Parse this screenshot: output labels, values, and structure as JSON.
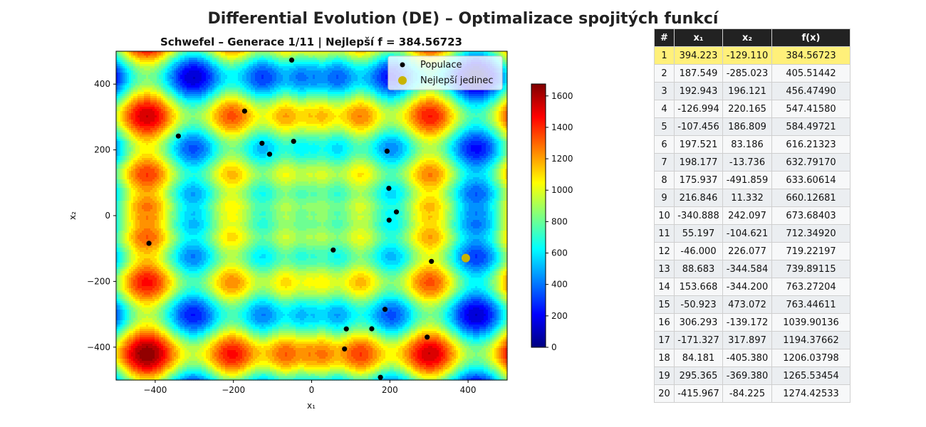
{
  "figure": {
    "suptitle": "Differential Evolution (DE) – Optimalizace spojitých funkcí"
  },
  "chart_data": {
    "type": "scatter",
    "title": "Schwefel – Generace 1/11 | Nejlepší f = 384.56723",
    "xlabel": "x₁",
    "ylabel": "x₂",
    "xlim": [
      -500,
      500
    ],
    "ylim": [
      -500,
      500
    ],
    "xticks": [
      "−400",
      "−200",
      "0",
      "200",
      "400"
    ],
    "xtick_values": [
      -400,
      -200,
      0,
      200,
      400
    ],
    "yticks": [
      "−400",
      "−200",
      "0",
      "200",
      "400"
    ],
    "ytick_values": [
      -400,
      -200,
      0,
      200,
      400
    ],
    "background": "filled contour of Schwefel function (jet colormap)",
    "colorbar": {
      "min": 0,
      "max": 1676,
      "ticks": [
        "0",
        "200",
        "400",
        "600",
        "800",
        "1000",
        "1200",
        "1400",
        "1600"
      ],
      "tick_values": [
        0,
        200,
        400,
        600,
        800,
        1000,
        1200,
        1400,
        1600
      ]
    },
    "legend": {
      "placement": "top-right"
    },
    "series": [
      {
        "name": "Populace",
        "color": "#000000",
        "points": [
          [
            394.223,
            -129.11
          ],
          [
            187.549,
            -285.023
          ],
          [
            192.943,
            196.121
          ],
          [
            -126.994,
            220.165
          ],
          [
            -107.456,
            186.809
          ],
          [
            197.521,
            83.186
          ],
          [
            198.177,
            -13.736
          ],
          [
            175.937,
            -491.859
          ],
          [
            216.846,
            11.332
          ],
          [
            -340.888,
            242.097
          ],
          [
            55.197,
            -104.621
          ],
          [
            -46.0,
            226.077
          ],
          [
            88.683,
            -344.584
          ],
          [
            153.668,
            -344.2
          ],
          [
            -50.923,
            473.072
          ],
          [
            306.293,
            -139.172
          ],
          [
            -171.327,
            317.897
          ],
          [
            84.181,
            -405.38
          ],
          [
            295.365,
            -369.38
          ],
          [
            -415.967,
            -84.225
          ]
        ]
      },
      {
        "name": "Nejlepší jedinec",
        "color": "#c8b400",
        "points": [
          [
            394.223,
            -129.11
          ]
        ]
      }
    ]
  },
  "table": {
    "headers": [
      "#",
      "x₁",
      "x₂",
      "f(x)"
    ],
    "rows": [
      [
        "1",
        "394.223",
        "-129.110",
        "384.56723"
      ],
      [
        "2",
        "187.549",
        "-285.023",
        "405.51442"
      ],
      [
        "3",
        "192.943",
        "196.121",
        "456.47490"
      ],
      [
        "4",
        "-126.994",
        "220.165",
        "547.41580"
      ],
      [
        "5",
        "-107.456",
        "186.809",
        "584.49721"
      ],
      [
        "6",
        "197.521",
        "83.186",
        "616.21323"
      ],
      [
        "7",
        "198.177",
        "-13.736",
        "632.79170"
      ],
      [
        "8",
        "175.937",
        "-491.859",
        "633.60614"
      ],
      [
        "9",
        "216.846",
        "11.332",
        "660.12681"
      ],
      [
        "10",
        "-340.888",
        "242.097",
        "673.68403"
      ],
      [
        "11",
        "55.197",
        "-104.621",
        "712.34920"
      ],
      [
        "12",
        "-46.000",
        "226.077",
        "719.22197"
      ],
      [
        "13",
        "88.683",
        "-344.584",
        "739.89115"
      ],
      [
        "14",
        "153.668",
        "-344.200",
        "763.27204"
      ],
      [
        "15",
        "-50.923",
        "473.072",
        "763.44611"
      ],
      [
        "16",
        "306.293",
        "-139.172",
        "1039.90136"
      ],
      [
        "17",
        "-171.327",
        "317.897",
        "1194.37662"
      ],
      [
        "18",
        "84.181",
        "-405.380",
        "1206.03798"
      ],
      [
        "19",
        "295.365",
        "-369.380",
        "1265.53454"
      ],
      [
        "20",
        "-415.967",
        "-84.225",
        "1274.42533"
      ]
    ],
    "highlight_color": "#fff07a",
    "header_bg": "#222222"
  }
}
